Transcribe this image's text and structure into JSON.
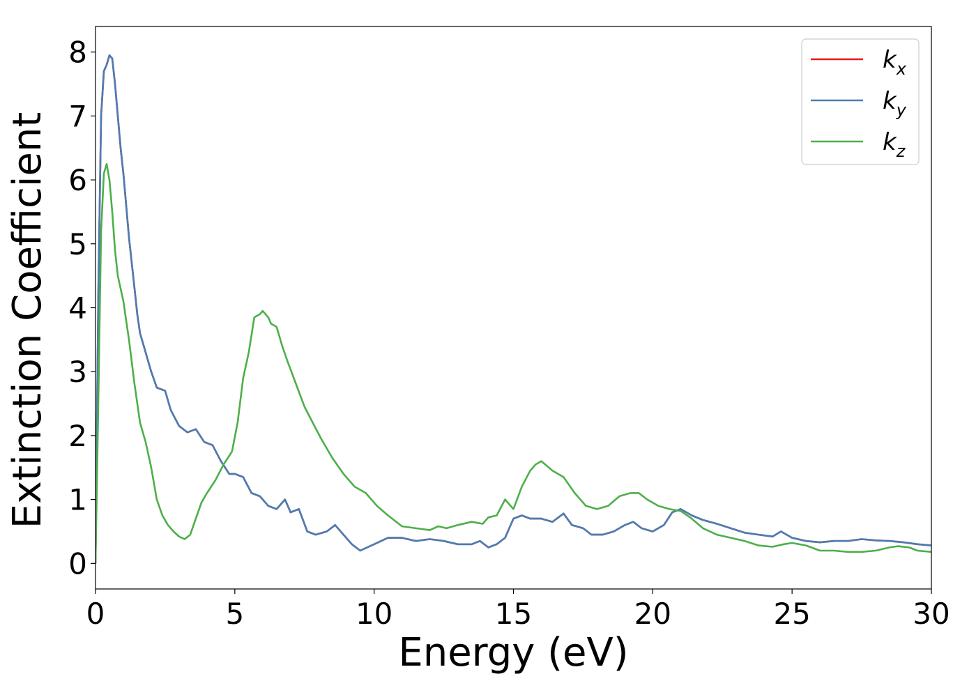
{
  "chart_data": {
    "type": "line",
    "title": "",
    "xlabel": "Energy (eV)",
    "ylabel": "Extinction Coefficient",
    "xlim": [
      0,
      30
    ],
    "ylim": [
      -0.4,
      8.4
    ],
    "xticks": [
      0,
      5,
      10,
      15,
      20,
      25,
      30
    ],
    "yticks": [
      0,
      1,
      2,
      3,
      4,
      5,
      6,
      7,
      8
    ],
    "grid": false,
    "legend_position": "top-right",
    "series": [
      {
        "name": "k_x",
        "legend_main": "k",
        "legend_sub": "x",
        "color": "#e41a1c",
        "points": [
          [
            0,
            0
          ],
          [
            0.1,
            4.2
          ],
          [
            0.2,
            7.0
          ],
          [
            0.3,
            7.7
          ],
          [
            0.4,
            7.8
          ],
          [
            0.5,
            7.95
          ],
          [
            0.6,
            7.9
          ],
          [
            0.7,
            7.5
          ],
          [
            0.8,
            7.0
          ],
          [
            0.9,
            6.5
          ],
          [
            1.0,
            6.1
          ],
          [
            1.1,
            5.6
          ],
          [
            1.2,
            5.1
          ],
          [
            1.3,
            4.7
          ],
          [
            1.4,
            4.3
          ],
          [
            1.5,
            3.9
          ],
          [
            1.6,
            3.6
          ],
          [
            1.7,
            3.45
          ],
          [
            1.8,
            3.3
          ],
          [
            2.0,
            3.0
          ],
          [
            2.2,
            2.75
          ],
          [
            2.5,
            2.7
          ],
          [
            2.7,
            2.4
          ],
          [
            3.0,
            2.15
          ],
          [
            3.3,
            2.05
          ],
          [
            3.6,
            2.1
          ],
          [
            3.9,
            1.9
          ],
          [
            4.2,
            1.85
          ],
          [
            4.5,
            1.6
          ],
          [
            4.8,
            1.4
          ],
          [
            5.0,
            1.4
          ],
          [
            5.3,
            1.35
          ],
          [
            5.6,
            1.1
          ],
          [
            5.9,
            1.05
          ],
          [
            6.2,
            0.9
          ],
          [
            6.5,
            0.85
          ],
          [
            6.8,
            1.0
          ],
          [
            7.0,
            0.8
          ],
          [
            7.3,
            0.85
          ],
          [
            7.6,
            0.5
          ],
          [
            7.9,
            0.45
          ],
          [
            8.3,
            0.5
          ],
          [
            8.6,
            0.6
          ],
          [
            8.9,
            0.45
          ],
          [
            9.2,
            0.3
          ],
          [
            9.5,
            0.2
          ],
          [
            10.0,
            0.3
          ],
          [
            10.5,
            0.4
          ],
          [
            11.0,
            0.4
          ],
          [
            11.5,
            0.35
          ],
          [
            12.0,
            0.38
          ],
          [
            12.5,
            0.35
          ],
          [
            13.0,
            0.3
          ],
          [
            13.5,
            0.3
          ],
          [
            13.8,
            0.35
          ],
          [
            14.1,
            0.25
          ],
          [
            14.4,
            0.3
          ],
          [
            14.7,
            0.4
          ],
          [
            15.0,
            0.7
          ],
          [
            15.3,
            0.75
          ],
          [
            15.6,
            0.7
          ],
          [
            16.0,
            0.7
          ],
          [
            16.4,
            0.65
          ],
          [
            16.8,
            0.78
          ],
          [
            17.1,
            0.6
          ],
          [
            17.5,
            0.55
          ],
          [
            17.8,
            0.45
          ],
          [
            18.2,
            0.45
          ],
          [
            18.6,
            0.5
          ],
          [
            19.0,
            0.6
          ],
          [
            19.3,
            0.65
          ],
          [
            19.6,
            0.55
          ],
          [
            20.0,
            0.5
          ],
          [
            20.4,
            0.6
          ],
          [
            20.7,
            0.8
          ],
          [
            21.0,
            0.85
          ],
          [
            21.4,
            0.75
          ],
          [
            21.8,
            0.68
          ],
          [
            22.3,
            0.62
          ],
          [
            22.8,
            0.55
          ],
          [
            23.3,
            0.48
          ],
          [
            23.8,
            0.45
          ],
          [
            24.3,
            0.42
          ],
          [
            24.6,
            0.5
          ],
          [
            25.0,
            0.4
          ],
          [
            25.5,
            0.35
          ],
          [
            26.0,
            0.33
          ],
          [
            26.5,
            0.35
          ],
          [
            27.0,
            0.35
          ],
          [
            27.5,
            0.38
          ],
          [
            28.0,
            0.36
          ],
          [
            28.5,
            0.35
          ],
          [
            29.0,
            0.33
          ],
          [
            29.5,
            0.3
          ],
          [
            30.0,
            0.28
          ]
        ]
      },
      {
        "name": "k_y",
        "legend_main": "k",
        "legend_sub": "y",
        "color": "#4a7db4",
        "points": [
          [
            0,
            0
          ],
          [
            0.1,
            4.2
          ],
          [
            0.2,
            7.0
          ],
          [
            0.3,
            7.7
          ],
          [
            0.4,
            7.8
          ],
          [
            0.5,
            7.95
          ],
          [
            0.6,
            7.9
          ],
          [
            0.7,
            7.5
          ],
          [
            0.8,
            7.0
          ],
          [
            0.9,
            6.5
          ],
          [
            1.0,
            6.1
          ],
          [
            1.1,
            5.6
          ],
          [
            1.2,
            5.1
          ],
          [
            1.3,
            4.7
          ],
          [
            1.4,
            4.3
          ],
          [
            1.5,
            3.9
          ],
          [
            1.6,
            3.6
          ],
          [
            1.7,
            3.45
          ],
          [
            1.8,
            3.3
          ],
          [
            2.0,
            3.0
          ],
          [
            2.2,
            2.75
          ],
          [
            2.5,
            2.7
          ],
          [
            2.7,
            2.4
          ],
          [
            3.0,
            2.15
          ],
          [
            3.3,
            2.05
          ],
          [
            3.6,
            2.1
          ],
          [
            3.9,
            1.9
          ],
          [
            4.2,
            1.85
          ],
          [
            4.5,
            1.6
          ],
          [
            4.8,
            1.4
          ],
          [
            5.0,
            1.4
          ],
          [
            5.3,
            1.35
          ],
          [
            5.6,
            1.1
          ],
          [
            5.9,
            1.05
          ],
          [
            6.2,
            0.9
          ],
          [
            6.5,
            0.85
          ],
          [
            6.8,
            1.0
          ],
          [
            7.0,
            0.8
          ],
          [
            7.3,
            0.85
          ],
          [
            7.6,
            0.5
          ],
          [
            7.9,
            0.45
          ],
          [
            8.3,
            0.5
          ],
          [
            8.6,
            0.6
          ],
          [
            8.9,
            0.45
          ],
          [
            9.2,
            0.3
          ],
          [
            9.5,
            0.2
          ],
          [
            10.0,
            0.3
          ],
          [
            10.5,
            0.4
          ],
          [
            11.0,
            0.4
          ],
          [
            11.5,
            0.35
          ],
          [
            12.0,
            0.38
          ],
          [
            12.5,
            0.35
          ],
          [
            13.0,
            0.3
          ],
          [
            13.5,
            0.3
          ],
          [
            13.8,
            0.35
          ],
          [
            14.1,
            0.25
          ],
          [
            14.4,
            0.3
          ],
          [
            14.7,
            0.4
          ],
          [
            15.0,
            0.7
          ],
          [
            15.3,
            0.75
          ],
          [
            15.6,
            0.7
          ],
          [
            16.0,
            0.7
          ],
          [
            16.4,
            0.65
          ],
          [
            16.8,
            0.78
          ],
          [
            17.1,
            0.6
          ],
          [
            17.5,
            0.55
          ],
          [
            17.8,
            0.45
          ],
          [
            18.2,
            0.45
          ],
          [
            18.6,
            0.5
          ],
          [
            19.0,
            0.6
          ],
          [
            19.3,
            0.65
          ],
          [
            19.6,
            0.55
          ],
          [
            20.0,
            0.5
          ],
          [
            20.4,
            0.6
          ],
          [
            20.7,
            0.8
          ],
          [
            21.0,
            0.85
          ],
          [
            21.4,
            0.75
          ],
          [
            21.8,
            0.68
          ],
          [
            22.3,
            0.62
          ],
          [
            22.8,
            0.55
          ],
          [
            23.3,
            0.48
          ],
          [
            23.8,
            0.45
          ],
          [
            24.3,
            0.42
          ],
          [
            24.6,
            0.5
          ],
          [
            25.0,
            0.4
          ],
          [
            25.5,
            0.35
          ],
          [
            26.0,
            0.33
          ],
          [
            26.5,
            0.35
          ],
          [
            27.0,
            0.35
          ],
          [
            27.5,
            0.38
          ],
          [
            28.0,
            0.36
          ],
          [
            28.5,
            0.35
          ],
          [
            29.0,
            0.33
          ],
          [
            29.5,
            0.3
          ],
          [
            30.0,
            0.28
          ]
        ]
      },
      {
        "name": "k_z",
        "legend_main": "k",
        "legend_sub": "z",
        "color": "#4daf4a",
        "points": [
          [
            0,
            0
          ],
          [
            0.1,
            2.5
          ],
          [
            0.2,
            5.2
          ],
          [
            0.3,
            6.1
          ],
          [
            0.4,
            6.25
          ],
          [
            0.5,
            6.0
          ],
          [
            0.6,
            5.5
          ],
          [
            0.7,
            4.9
          ],
          [
            0.8,
            4.5
          ],
          [
            1.0,
            4.1
          ],
          [
            1.2,
            3.5
          ],
          [
            1.4,
            2.8
          ],
          [
            1.6,
            2.2
          ],
          [
            1.8,
            1.9
          ],
          [
            2.0,
            1.5
          ],
          [
            2.2,
            1.0
          ],
          [
            2.4,
            0.75
          ],
          [
            2.6,
            0.6
          ],
          [
            2.8,
            0.5
          ],
          [
            3.0,
            0.42
          ],
          [
            3.2,
            0.38
          ],
          [
            3.4,
            0.45
          ],
          [
            3.6,
            0.7
          ],
          [
            3.8,
            0.95
          ],
          [
            4.0,
            1.1
          ],
          [
            4.3,
            1.3
          ],
          [
            4.6,
            1.55
          ],
          [
            4.9,
            1.75
          ],
          [
            5.1,
            2.2
          ],
          [
            5.3,
            2.9
          ],
          [
            5.5,
            3.3
          ],
          [
            5.7,
            3.85
          ],
          [
            5.9,
            3.9
          ],
          [
            6.0,
            3.95
          ],
          [
            6.2,
            3.85
          ],
          [
            6.3,
            3.75
          ],
          [
            6.5,
            3.7
          ],
          [
            6.7,
            3.4
          ],
          [
            6.9,
            3.15
          ],
          [
            7.2,
            2.8
          ],
          [
            7.5,
            2.45
          ],
          [
            7.8,
            2.2
          ],
          [
            8.1,
            1.95
          ],
          [
            8.5,
            1.65
          ],
          [
            8.9,
            1.4
          ],
          [
            9.3,
            1.2
          ],
          [
            9.7,
            1.1
          ],
          [
            10.1,
            0.9
          ],
          [
            10.5,
            0.75
          ],
          [
            11.0,
            0.58
          ],
          [
            11.5,
            0.55
          ],
          [
            12.0,
            0.52
          ],
          [
            12.3,
            0.58
          ],
          [
            12.6,
            0.55
          ],
          [
            13.0,
            0.6
          ],
          [
            13.5,
            0.65
          ],
          [
            13.9,
            0.62
          ],
          [
            14.1,
            0.72
          ],
          [
            14.4,
            0.75
          ],
          [
            14.7,
            1.0
          ],
          [
            15.0,
            0.85
          ],
          [
            15.3,
            1.2
          ],
          [
            15.6,
            1.45
          ],
          [
            15.8,
            1.55
          ],
          [
            16.0,
            1.6
          ],
          [
            16.4,
            1.45
          ],
          [
            16.8,
            1.35
          ],
          [
            17.2,
            1.1
          ],
          [
            17.6,
            0.9
          ],
          [
            18.0,
            0.85
          ],
          [
            18.4,
            0.9
          ],
          [
            18.8,
            1.05
          ],
          [
            19.2,
            1.1
          ],
          [
            19.5,
            1.1
          ],
          [
            19.8,
            1.0
          ],
          [
            20.2,
            0.9
          ],
          [
            20.6,
            0.85
          ],
          [
            21.0,
            0.82
          ],
          [
            21.4,
            0.7
          ],
          [
            21.8,
            0.55
          ],
          [
            22.3,
            0.45
          ],
          [
            22.8,
            0.4
          ],
          [
            23.3,
            0.35
          ],
          [
            23.8,
            0.28
          ],
          [
            24.3,
            0.26
          ],
          [
            24.7,
            0.3
          ],
          [
            25.0,
            0.32
          ],
          [
            25.5,
            0.28
          ],
          [
            26.0,
            0.2
          ],
          [
            26.5,
            0.2
          ],
          [
            27.0,
            0.18
          ],
          [
            27.5,
            0.18
          ],
          [
            28.0,
            0.2
          ],
          [
            28.5,
            0.25
          ],
          [
            28.8,
            0.27
          ],
          [
            29.2,
            0.25
          ],
          [
            29.5,
            0.2
          ],
          [
            30.0,
            0.18
          ]
        ]
      }
    ]
  }
}
